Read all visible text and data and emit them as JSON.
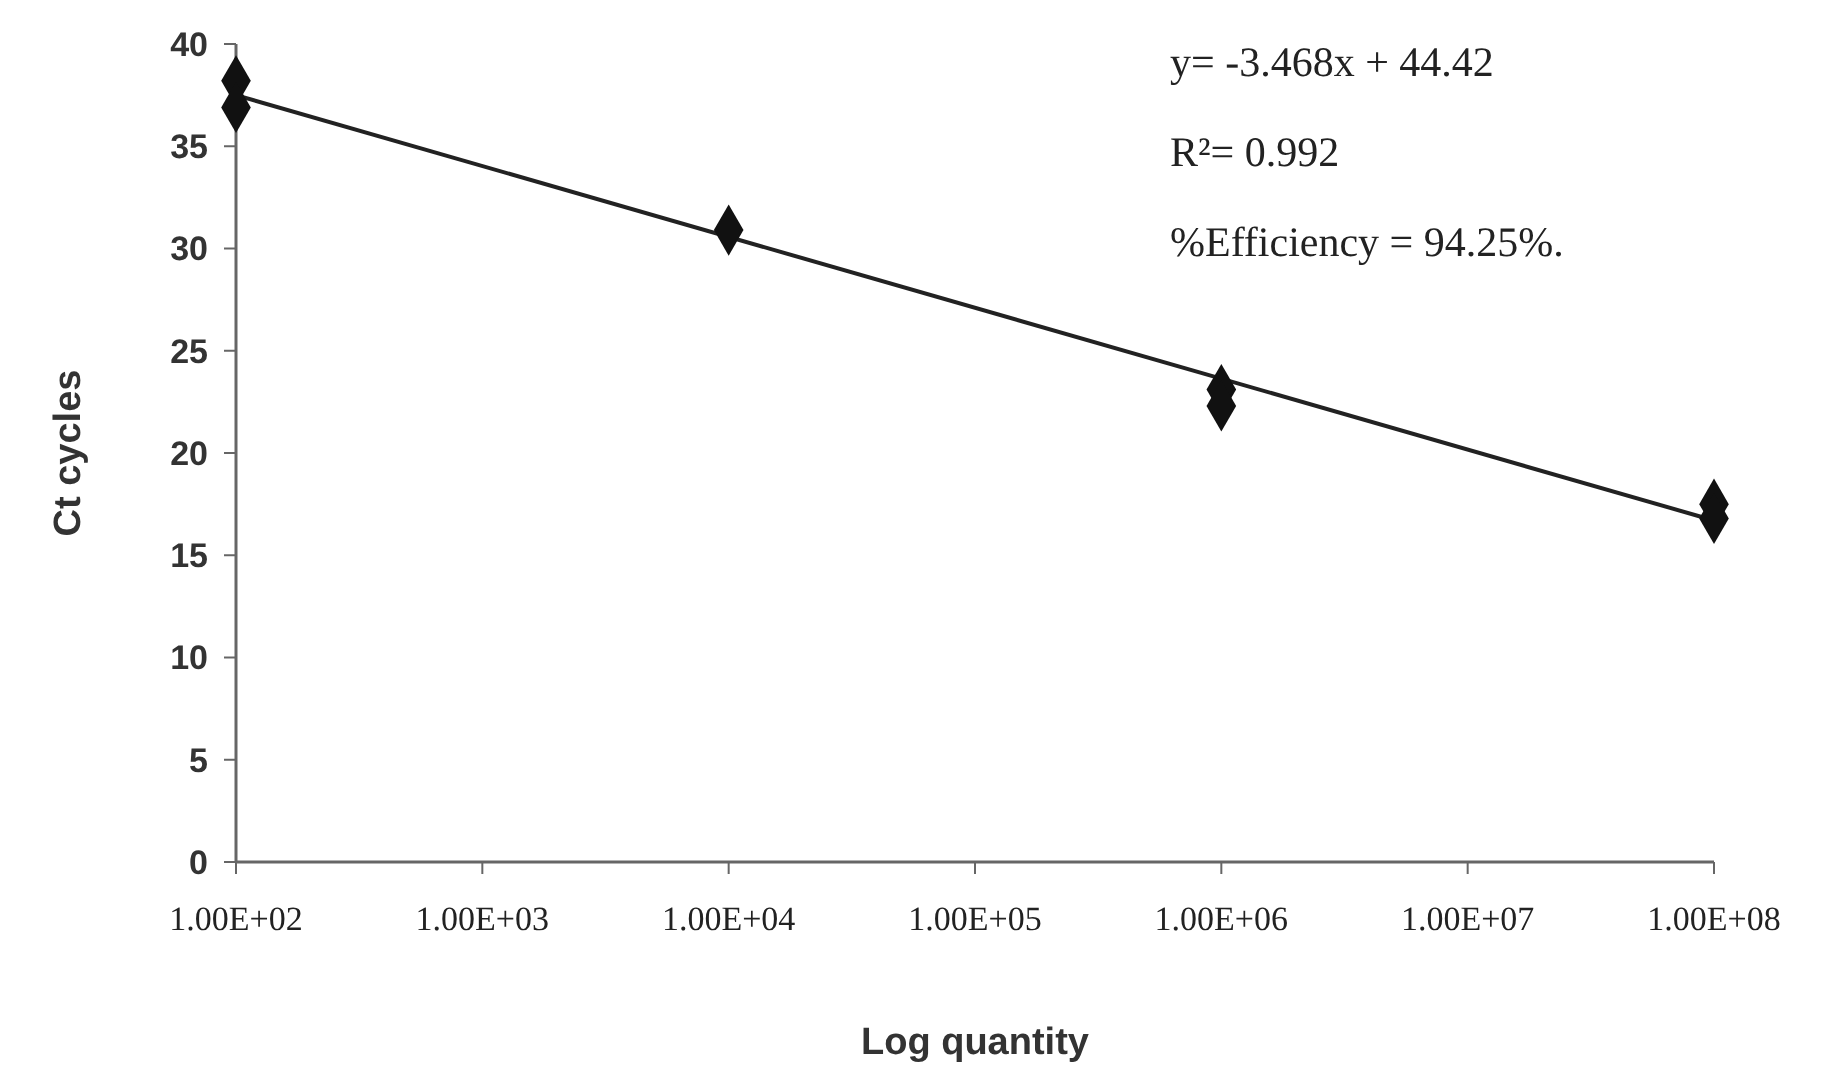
{
  "chart_data": {
    "type": "scatter",
    "xlabel": "Log quantity",
    "ylabel": "Ct cycles",
    "log": "x",
    "xlim": [
      100,
      100000000
    ],
    "ylim": [
      0,
      40
    ],
    "xticks": [
      {
        "value": 100,
        "label": "1.00E+02"
      },
      {
        "value": 1000,
        "label": "1.00E+03"
      },
      {
        "value": 10000,
        "label": "1.00E+04"
      },
      {
        "value": 100000,
        "label": "1.00E+05"
      },
      {
        "value": 1000000,
        "label": "1.00E+06"
      },
      {
        "value": 10000000,
        "label": "1.00E+07"
      },
      {
        "value": 100000000,
        "label": "1.00E+08"
      }
    ],
    "yticks": [
      0,
      5,
      10,
      15,
      20,
      25,
      30,
      35,
      40
    ],
    "series": [
      {
        "color": "#111111",
        "marker": "diamond",
        "x": [
          100,
          100,
          10000,
          1000000,
          1000000,
          100000000,
          100000000
        ],
        "values": [
          38.2,
          36.9,
          30.9,
          23.1,
          22.3,
          17.5,
          16.8
        ]
      },
      {
        "type": "line",
        "color": "#222222",
        "x": [
          100,
          100000000
        ],
        "values": [
          37.5,
          16.7
        ]
      }
    ],
    "annotations": [
      "y= -3.468x + 44.42",
      "R²= 0.992",
      "%Efficiency = 94.25%."
    ]
  }
}
